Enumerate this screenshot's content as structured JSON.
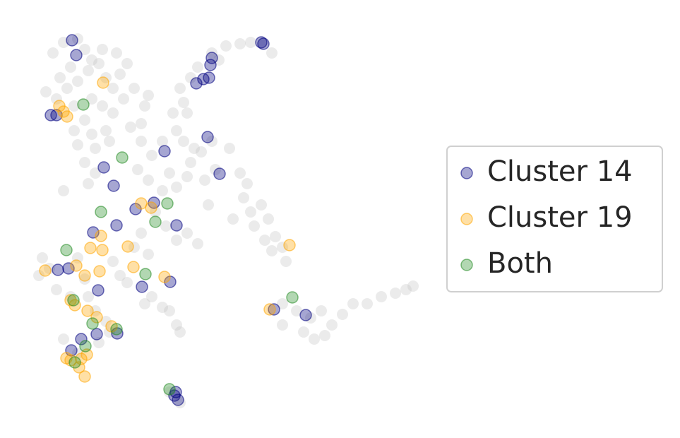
{
  "chart_data": {
    "type": "scatter",
    "xlim": [
      0,
      620
    ],
    "ylim": [
      0,
      620
    ],
    "legend": "right",
    "series": [
      {
        "color": "#bdbdbd",
        "x": [
          75,
          90,
          110,
          120,
          130,
          100,
          85,
          95,
          110,
          125,
          140,
          150,
          160,
          170,
          180,
          165,
          145,
          65,
          80,
          105,
          130,
          145,
          160,
          175,
          190,
          205,
          120,
          105,
          130,
          150,
          110,
          135,
          155,
          120,
          135,
          125,
          90,
          185,
          200,
          215,
          230,
          210,
          200,
          255,
          260,
          270,
          280,
          300,
          320,
          340,
          355,
          385,
          310,
          265,
          245,
          250,
          260,
          275,
          270,
          285,
          300,
          325,
          240,
          250,
          265,
          290,
          305,
          230,
          210,
          195,
          340,
          350,
          345,
          355,
          360,
          370,
          380,
          390,
          400,
          405,
          385,
          375,
          330,
          400,
          420,
          440,
          455,
          470,
          485,
          500,
          520,
          540,
          560,
          575,
          585,
          445,
          460,
          400,
          430,
          220,
          235,
          250,
          265,
          280,
          295,
          200,
          210,
          190,
          180,
          215,
          230,
          240,
          250,
          255,
          205,
          170,
          160,
          55,
          70,
          80,
          60,
          110,
          120,
          100,
          125,
          135,
          150,
          155,
          140,
          110,
          90,
          240,
          255
        ],
        "values": [
          545,
          560,
          565,
          550,
          535,
          525,
          510,
          495,
          505,
          520,
          530,
          510,
          495,
          515,
          530,
          545,
          550,
          490,
          480,
          470,
          480,
          470,
          460,
          480,
          495,
          470,
          450,
          435,
          430,
          435,
          415,
          410,
          420,
          390,
          375,
          360,
          350,
          440,
          420,
          400,
          420,
          485,
          445,
          495,
          475,
          510,
          525,
          545,
          555,
          558,
          560,
          545,
          535,
          460,
          460,
          435,
          420,
          410,
          390,
          405,
          420,
          410,
          375,
          355,
          370,
          365,
          380,
          350,
          365,
          380,
          375,
          360,
          340,
          320,
          300,
          330,
          310,
          285,
          270,
          250,
          265,
          280,
          310,
          190,
          180,
          170,
          180,
          160,
          175,
          190,
          190,
          200,
          205,
          210,
          215,
          140,
          145,
          160,
          150,
          320,
          300,
          280,
          290,
          275,
          330,
          290,
          260,
          270,
          220,
          200,
          185,
          180,
          160,
          150,
          190,
          230,
          250,
          230,
          240,
          210,
          255,
          255,
          225,
          200,
          200,
          180,
          165,
          150,
          135,
          120,
          140,
          65,
          50
        ]
      },
      {
        "name": "Cluster 14",
        "color": "#00007f",
        "x": [
          102,
          108,
          370,
          373,
          300,
          298,
          296,
          288,
          278,
          80,
          72,
          294,
          233,
          147,
          311,
          161,
          192,
          218,
          165,
          250,
          132,
          97,
          82,
          139,
          201,
          241,
          388,
          433,
          115,
          137,
          166,
          101,
          249,
          252,
          247
        ],
        "values": [
          563,
          542,
          560,
          558,
          538,
          528,
          510,
          508,
          502,
          457,
          457,
          426,
          406,
          383,
          374,
          357,
          324,
          333,
          301,
          301,
          291,
          240,
          238,
          209,
          214,
          221,
          182,
          174,
          140,
          147,
          148,
          124,
          65,
          54,
          60
        ]
      },
      {
        "name": "Cluster 19",
        "color": "#ffa500",
        "x": [
          146,
          84,
          95,
          90,
          200,
          214,
          181,
          128,
          145,
          143,
          141,
          120,
          64,
          108,
          189,
          233,
          382,
          410,
          100,
          106,
          124,
          137,
          158,
          100,
          112,
          120,
          123,
          94,
          115
        ],
        "values": [
          503,
          470,
          455,
          462,
          332,
          326,
          271,
          269,
          266,
          286,
          236,
          230,
          237,
          244,
          242,
          228,
          182,
          273,
          195,
          188,
          180,
          171,
          158,
          110,
          100,
          87,
          118,
          113,
          112
        ]
      },
      {
        "name": "Both",
        "color": "#228b22",
        "x": [
          118,
          173,
          143,
          237,
          220,
          94,
          206,
          414,
          104,
          131,
          165,
          121,
          106,
          240
        ],
        "values": [
          472,
          397,
          320,
          332,
          306,
          266,
          232,
          199,
          195,
          162,
          154,
          130,
          107,
          69
        ]
      }
    ]
  }
}
